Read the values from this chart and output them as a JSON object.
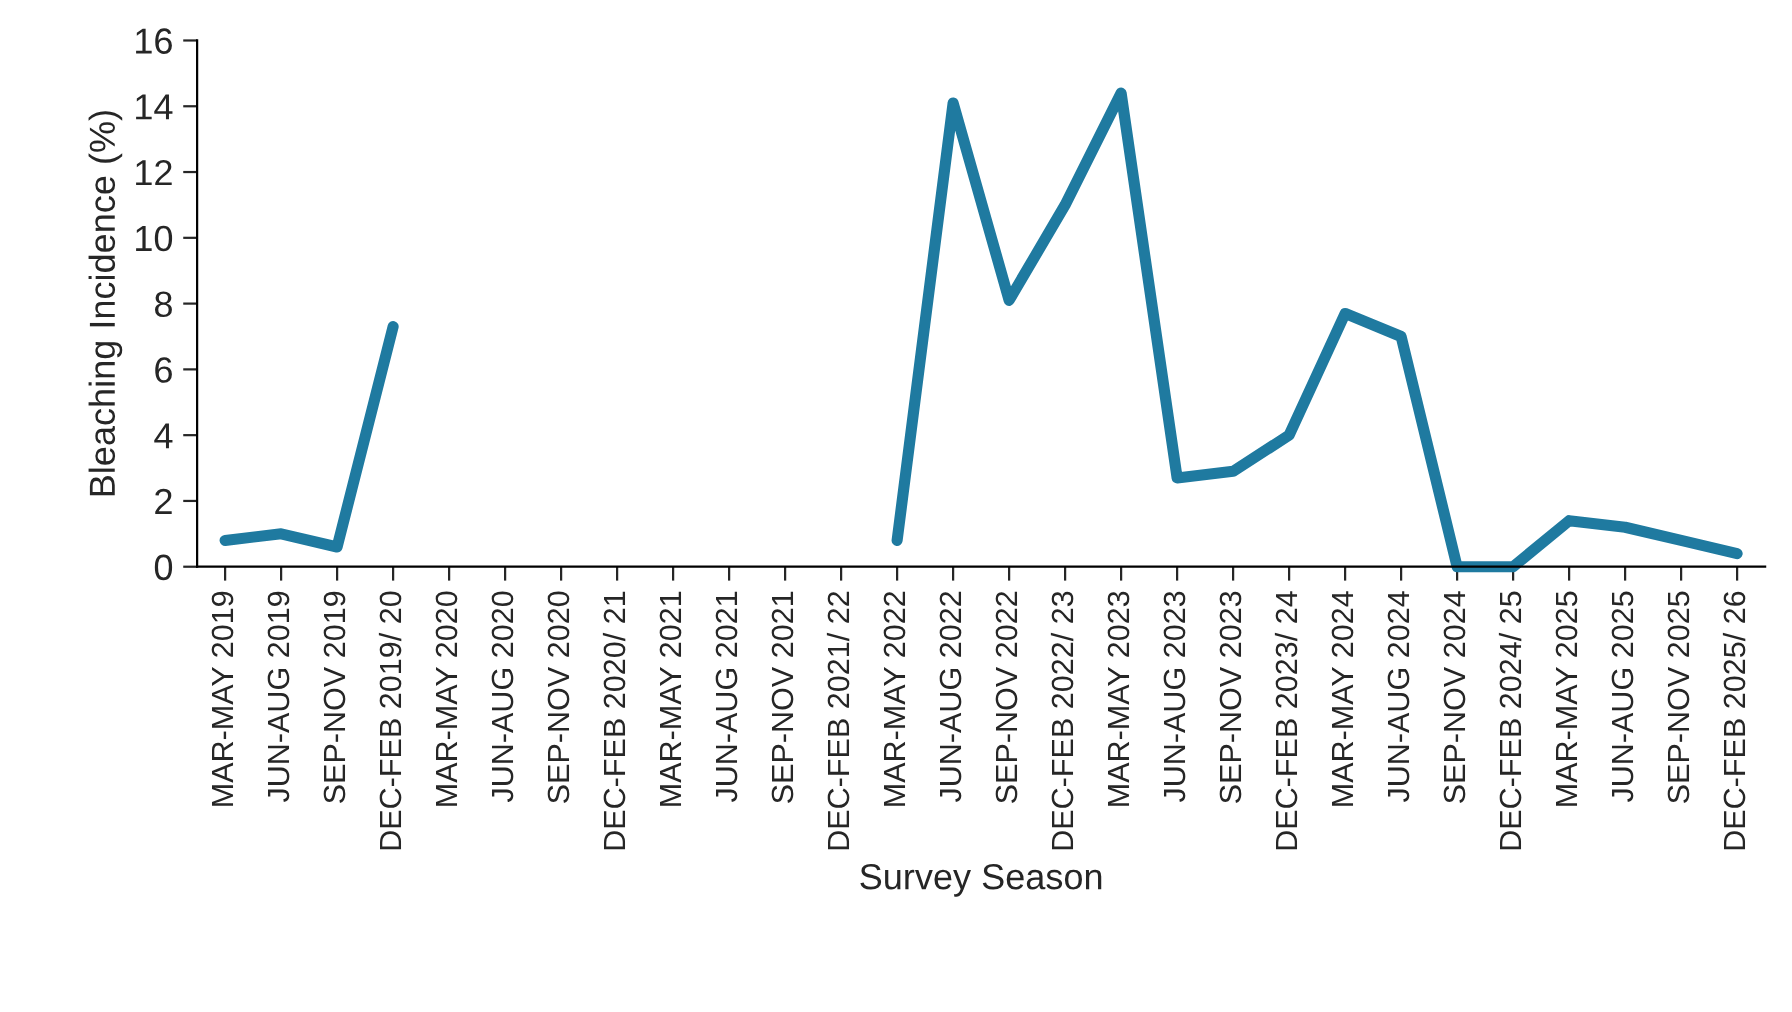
{
  "chart_data": {
    "type": "line",
    "xlabel": "Survey Season",
    "ylabel": "Bleaching Incidence (%)",
    "categories": [
      "MAR-MAY 2019",
      "JUN-AUG 2019",
      "SEP-NOV 2019",
      "DEC-FEB 2019/ 20",
      "MAR-MAY 2020",
      "JUN-AUG 2020",
      "SEP-NOV 2020",
      "DEC-FEB 2020/ 21",
      "MAR-MAY 2021",
      "JUN-AUG 2021",
      "SEP-NOV 2021",
      "DEC-FEB 2021/ 22",
      "MAR-MAY 2022",
      "JUN-AUG 2022",
      "SEP-NOV 2022",
      "DEC-FEB 2022/ 23",
      "MAR-MAY 2023",
      "JUN-AUG 2023",
      "SEP-NOV 2023",
      "DEC-FEB 2023/ 24",
      "MAR-MAY 2024",
      "JUN-AUG 2024",
      "SEP-NOV 2024",
      "DEC-FEB 2024/ 25",
      "MAR-MAY 2025",
      "JUN-AUG 2025",
      "SEP-NOV 2025",
      "DEC-FEB 2025/ 26"
    ],
    "series": [
      {
        "color": "#1f7aa0",
        "values": [
          0.8,
          1.0,
          0.6,
          7.3,
          null,
          null,
          null,
          null,
          null,
          null,
          null,
          null,
          0.8,
          14.1,
          8.1,
          11.0,
          14.4,
          2.7,
          2.9,
          4.0,
          7.7,
          7.0,
          0,
          0,
          1.4,
          1.2,
          0.8,
          0.4
        ]
      }
    ],
    "ylim": [
      0,
      16
    ],
    "yticks": [
      0,
      2,
      4,
      6,
      8,
      10,
      12,
      14,
      16
    ],
    "grid": false,
    "legend": false,
    "marker": "none",
    "line_style": "solid"
  }
}
